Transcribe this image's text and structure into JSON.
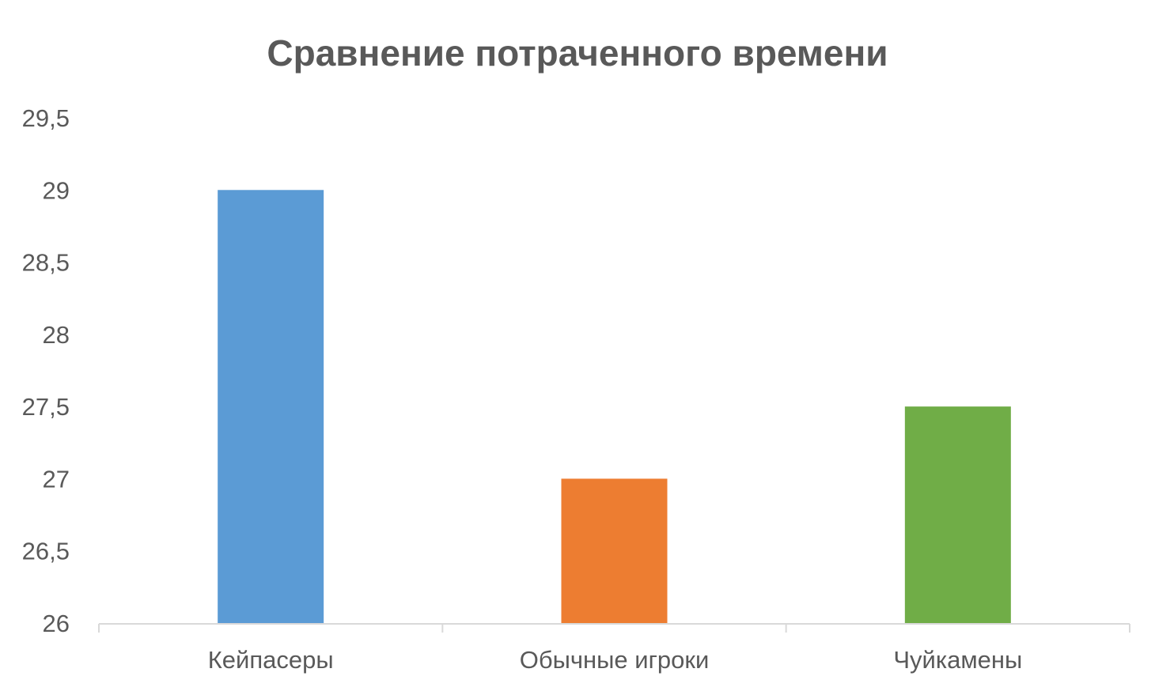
{
  "chart_data": {
    "type": "bar",
    "title": "Сравнение потраченного времени",
    "categories": [
      "Кейпасеры",
      "Обычные игроки",
      "Чуйкамены"
    ],
    "values": [
      29,
      27,
      27.5
    ],
    "colors": [
      "#5B9BD5",
      "#ED7D31",
      "#70AD47"
    ],
    "ylim": [
      26,
      29.5
    ],
    "yticks": [
      "26",
      "26,5",
      "27",
      "27,5",
      "28",
      "28,5",
      "29",
      "29,5"
    ],
    "ytick_values": [
      26,
      26.5,
      27,
      27.5,
      28,
      28.5,
      29,
      29.5
    ],
    "grid": false,
    "legend": "none",
    "axis_color": "#D9D9D9"
  }
}
